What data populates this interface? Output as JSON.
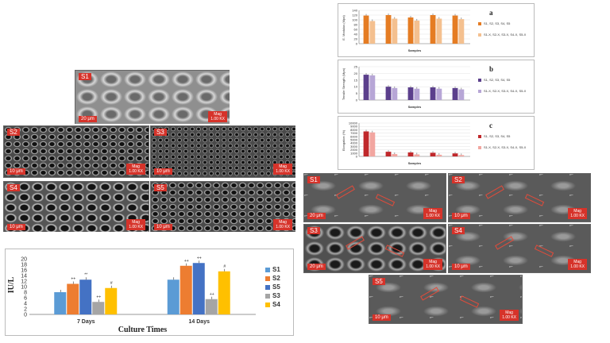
{
  "sem_top": [
    {
      "label": "S1",
      "scale": "20 μm",
      "mag": [
        "Mag",
        "1.00 KX"
      ],
      "texture": "cells"
    }
  ],
  "sem_left": [
    {
      "label": "S2",
      "scale": "10 μm",
      "mag": [
        "Mag",
        "1.00 KX"
      ],
      "texture": "pores"
    },
    {
      "label": "S3",
      "scale": "10 μm",
      "mag": [
        "Mag",
        "1.00 KX"
      ],
      "texture": "pores-fine"
    },
    {
      "label": "S4",
      "scale": "10 μm",
      "mag": [
        "Mag",
        "1.00 KX"
      ],
      "texture": "pores-big"
    },
    {
      "label": "S5",
      "scale": "10 μm",
      "mag": [
        "Mag",
        "1.00 KX"
      ],
      "texture": "pores"
    }
  ],
  "sem_right": [
    {
      "label": "S1",
      "scale": "20 μm",
      "mag": [
        "Mag",
        "1.00 KX"
      ],
      "texture": "fracture"
    },
    {
      "label": "S2",
      "scale": "10 μm",
      "mag": [
        "Mag",
        "1.00 KX"
      ],
      "texture": "fracture"
    },
    {
      "label": "S3",
      "scale": "20 μm",
      "mag": [
        "Mag",
        "1.00 KX"
      ],
      "texture": "fracture-dark"
    },
    {
      "label": "S4",
      "scale": "10 μm",
      "mag": [
        "Mag",
        "1.00 KX"
      ],
      "texture": "fracture"
    },
    {
      "label": "S5",
      "scale": "10 μm",
      "mag": [
        "Mag",
        "1.00 KX"
      ],
      "texture": "fracture"
    }
  ],
  "chart_data": [
    {
      "type": "bar",
      "letter": "a",
      "ylabel": "E. Modulus (Mpa)",
      "xlabel": "Samples",
      "ylim": [
        0,
        140
      ],
      "yticks": [
        0,
        20,
        40,
        60,
        80,
        100,
        120,
        140
      ],
      "categories": [
        "S1",
        "S2",
        "S3",
        "S4",
        "S5"
      ],
      "series": [
        {
          "name": "S1, S2, S3, S4, S5",
          "values": [
            118,
            120,
            110,
            120,
            118
          ],
          "color": "#e57c23"
        },
        {
          "name": "S1-X, S2-X, S3-X, S4-X, S5-X",
          "values": [
            95,
            105,
            97,
            105,
            103
          ],
          "color": "#f4c08f"
        }
      ]
    },
    {
      "type": "bar",
      "letter": "b",
      "ylabel": "Tensile Strength (Mpa)",
      "xlabel": "Samples",
      "ylim": [
        0,
        25
      ],
      "yticks": [
        0,
        5,
        10,
        15,
        20,
        25
      ],
      "categories": [
        "S1",
        "S2",
        "S3",
        "S4",
        "S5"
      ],
      "series": [
        {
          "name": "S1, S2, S3, S4, S5",
          "values": [
            19,
            10,
            9.5,
            9.5,
            9
          ],
          "color": "#5b3f8c"
        },
        {
          "name": "S1-X, S2-X, S3-X, S4-X, S5-X",
          "values": [
            18.5,
            9,
            8.5,
            8.5,
            8
          ],
          "color": "#b7a6d6"
        }
      ]
    },
    {
      "type": "bar",
      "letter": "c",
      "ylabel": "Elongation (%)",
      "xlabel": "Samples",
      "ylim": [
        0,
        10000
      ],
      "yticks": [
        0,
        1000,
        2000,
        3000,
        4000,
        5000,
        6000,
        7000,
        8000,
        9000,
        10000
      ],
      "categories": [
        "S1",
        "S2",
        "S3",
        "S4",
        "S5"
      ],
      "series": [
        {
          "name": "S1, S2, S3, S4, S5",
          "values": [
            7500,
            1400,
            1200,
            1100,
            900
          ],
          "color": "#c0282b"
        },
        {
          "name": "S1-X, S2-X, S3-X, S4-X, S5-X",
          "values": [
            7200,
            700,
            600,
            500,
            400
          ],
          "color": "#f2a6a0"
        }
      ]
    },
    {
      "type": "bar",
      "ylabel": "IU/L",
      "xlabel": "Culture Times",
      "ylim": [
        0,
        20
      ],
      "yticks": [
        0,
        2,
        4,
        6,
        8,
        10,
        12,
        14,
        16,
        18,
        20
      ],
      "categories": [
        "7 Days",
        "14 Days"
      ],
      "legend_position": "right",
      "series": [
        {
          "name": "S1",
          "values": [
            8.0,
            12.5
          ],
          "color": "#5b9bd5"
        },
        {
          "name": "S2",
          "values": [
            11.0,
            17.5
          ],
          "color": "#ed7d31"
        },
        {
          "name": "S5",
          "values": [
            12.5,
            18.5
          ],
          "color": "#4472c4"
        },
        {
          "name": "S3",
          "values": [
            4.5,
            5.5
          ],
          "color": "#a5a5a5"
        },
        {
          "name": "S4",
          "values": [
            9.5,
            15.5
          ],
          "color": "#ffc000"
        }
      ],
      "annotations": [
        {
          "category": "7 Days",
          "series": "S2",
          "text": "++"
        },
        {
          "category": "7 Days",
          "series": "S5",
          "text": "**"
        },
        {
          "category": "7 Days",
          "series": "S3",
          "text": "++"
        },
        {
          "category": "7 Days",
          "series": "S4",
          "text": "#"
        },
        {
          "category": "14 Days",
          "series": "S2",
          "text": "++"
        },
        {
          "category": "14 Days",
          "series": "S5",
          "text": "++"
        },
        {
          "category": "14 Days",
          "series": "S3",
          "text": "++"
        },
        {
          "category": "14 Days",
          "series": "S4",
          "text": "#"
        }
      ]
    }
  ]
}
